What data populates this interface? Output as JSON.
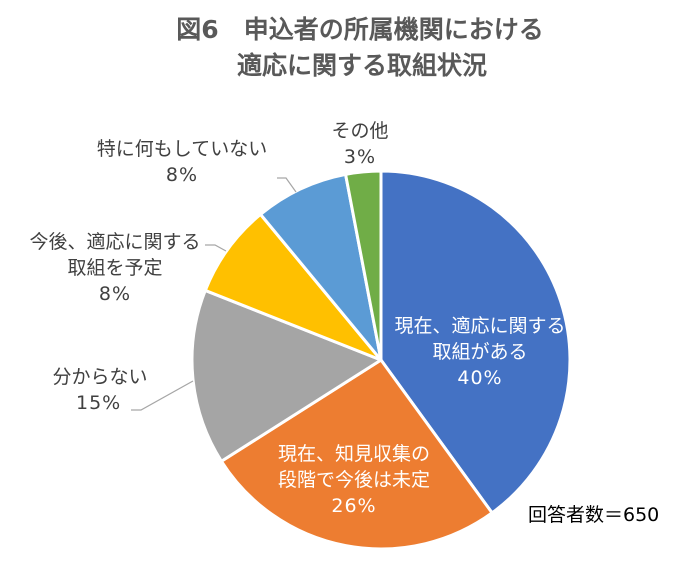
{
  "title": {
    "line1": "図6　申込者の所属機関における",
    "line2": "適応に関する取組状況"
  },
  "respondents": "回答者数＝650",
  "chart_data": {
    "type": "pie",
    "title": "図6　申込者の所属機関における適応に関する取組状況",
    "start_angle_deg": 0,
    "direction": "clockwise",
    "center": [
      381,
      360
    ],
    "radius": 189,
    "slices": [
      {
        "label": "現在、適応に関する取組がある",
        "label_lines": [
          "現在、適応に関する",
          "取組がある"
        ],
        "value": 40,
        "pct": "40%",
        "color": "#4472C4",
        "label_inside": true
      },
      {
        "label": "現在、知見収集の段階で今後は未定",
        "label_lines": [
          "現在、知見収集の",
          "段階で今後は未定"
        ],
        "value": 26,
        "pct": "26%",
        "color": "#ED7D31",
        "label_inside": true
      },
      {
        "label": "分からない",
        "label_lines": [
          "分からない"
        ],
        "value": 15,
        "pct": "15%",
        "color": "#A5A5A5",
        "label_inside": false
      },
      {
        "label": "今後、適応に関する取組を予定",
        "label_lines": [
          "今後、適応に関する",
          "取組を予定"
        ],
        "value": 8,
        "pct": "8%",
        "color": "#FFC000",
        "label_inside": false
      },
      {
        "label": "特に何もしていない",
        "label_lines": [
          "特に何もしていない"
        ],
        "value": 8,
        "pct": "8%",
        "color": "#5B9BD5",
        "label_inside": false
      },
      {
        "label": "その他",
        "label_lines": [
          "その他"
        ],
        "value": 3,
        "pct": "3%",
        "color": "#70AD47",
        "label_inside": false
      }
    ],
    "annotation": "回答者数＝650",
    "legend": "none (data labels on/near slices)"
  }
}
